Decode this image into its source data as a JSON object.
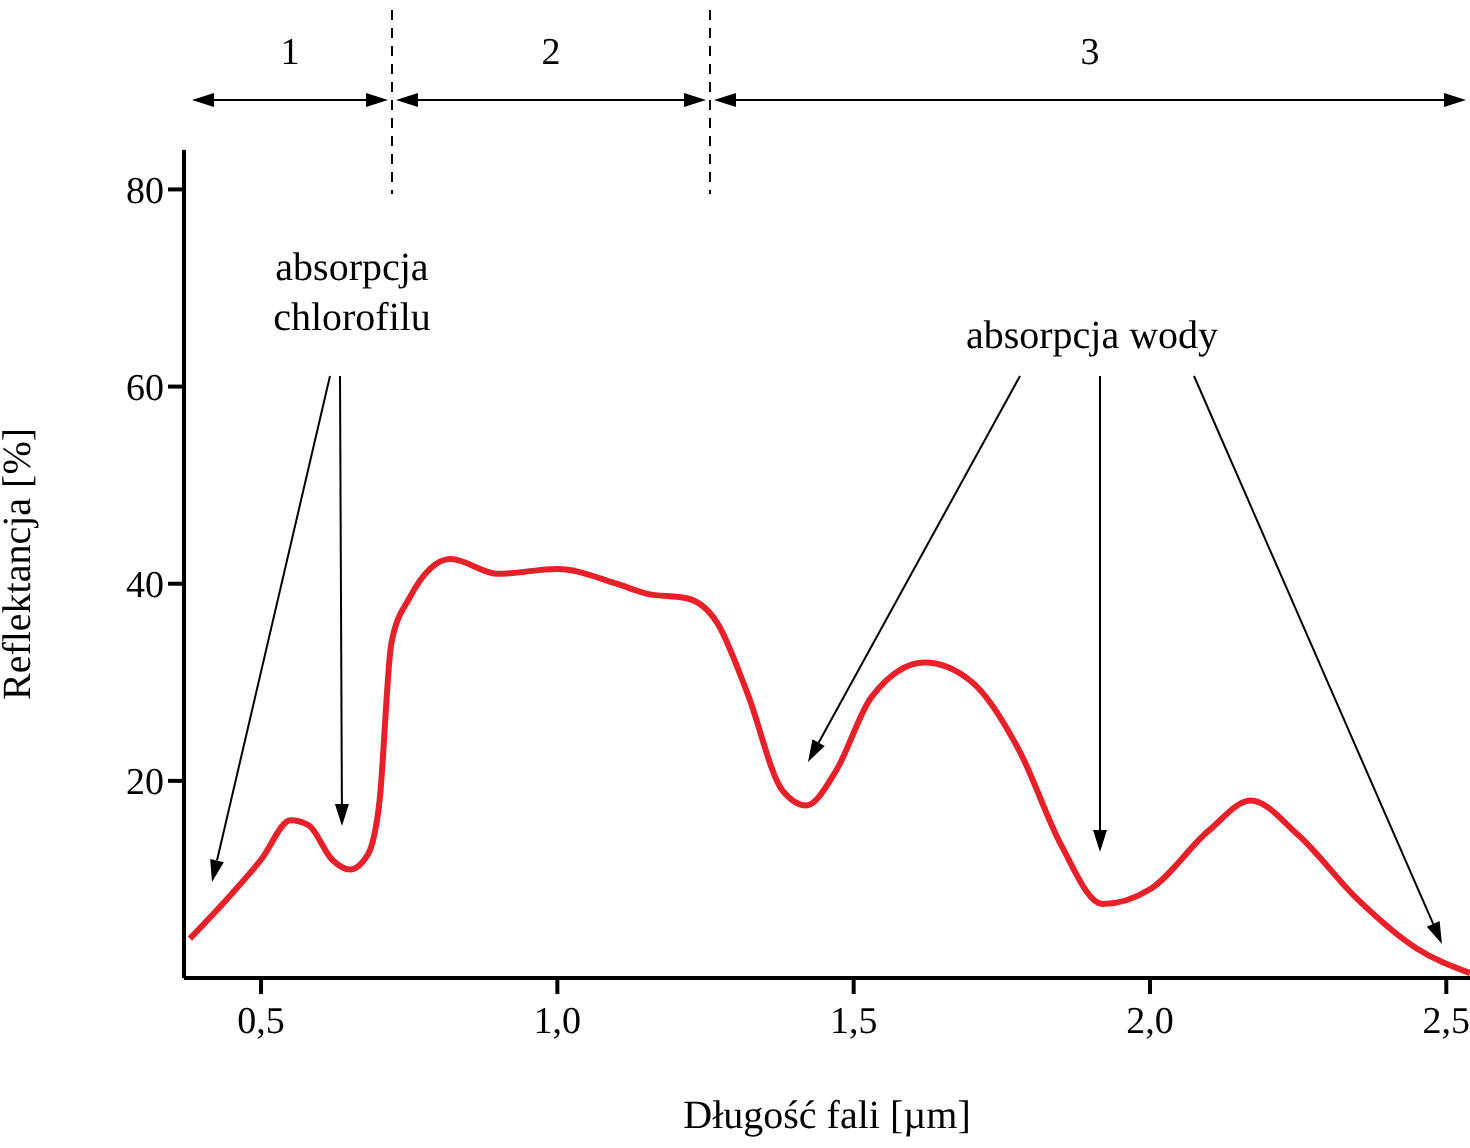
{
  "chart_data": {
    "type": "line",
    "xlabel": "Długość fali [µm]",
    "ylabel": "Reflektancja [%]",
    "x": [
      0.38,
      0.45,
      0.5,
      0.55,
      0.58,
      0.62,
      0.65,
      0.68,
      0.7,
      0.72,
      0.75,
      0.82,
      0.9,
      1.0,
      1.1,
      1.15,
      1.22,
      1.27,
      1.32,
      1.38,
      1.42,
      1.47,
      1.53,
      1.62,
      1.7,
      1.78,
      1.85,
      1.92,
      2.0,
      2.1,
      2.17,
      2.25,
      2.35,
      2.45,
      2.54
    ],
    "series": [
      {
        "color": "#e8202a",
        "values": [
          4,
          8.5,
          12,
          16,
          15.5,
          12,
          11,
          12.5,
          18,
          34,
          38.5,
          42.5,
          41,
          41.5,
          40,
          39,
          38.5,
          36,
          29,
          19,
          17.5,
          21,
          28.5,
          32,
          30,
          23,
          13.5,
          7.5,
          9,
          15,
          18,
          14.5,
          8,
          3,
          0.5
        ]
      }
    ],
    "xlim": [
      0.37,
      2.54
    ],
    "xticks": [
      {
        "value": 0.5,
        "label": "0,5"
      },
      {
        "value": 1.0,
        "label": "1,0"
      },
      {
        "value": 1.5,
        "label": "1,5"
      },
      {
        "value": 2.0,
        "label": "2,0"
      },
      {
        "value": 2.5,
        "label": "2,5"
      }
    ],
    "ylim": [
      0,
      84
    ],
    "yticks": [
      20,
      40,
      60,
      80
    ],
    "marker": "none",
    "line_style": "solid",
    "annotations": [
      "1",
      "2",
      "3",
      "absorpcja chlorofilu",
      "absorpcja wody"
    ]
  }
}
